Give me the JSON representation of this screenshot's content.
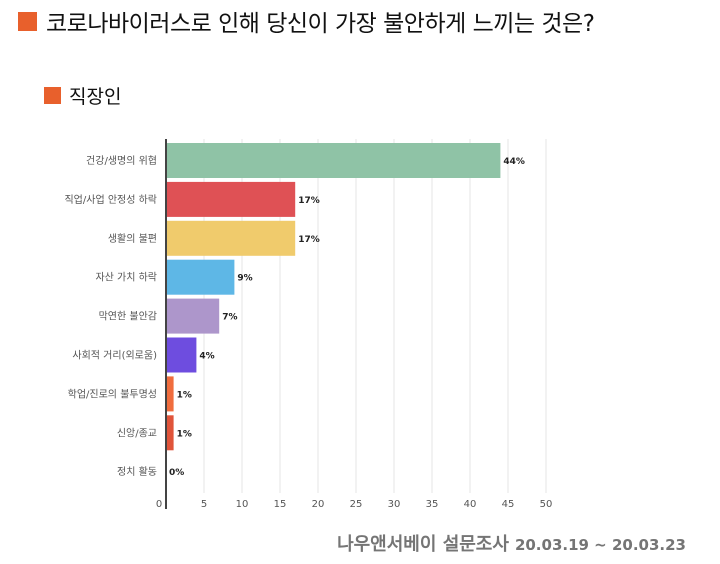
{
  "page": {
    "title": "코로나바이러스로 인해 당신이 가장 불안하게 느끼는 것은?",
    "subtitle": "직장인",
    "footer_brand": "나우앤서베이 설문조사",
    "footer_date": "20.03.19 ~ 20.03.23"
  },
  "chart_data": {
    "type": "bar",
    "orientation": "horizontal",
    "categories": [
      "건강/생명의 위협",
      "직업/사업 안정성 하락",
      "생활의 불편",
      "자산 가치 하락",
      "막연한 불안감",
      "사회적 거리(외로움)",
      "학업/진로의 불투명성",
      "신앙/종교",
      "정치 활동"
    ],
    "values": [
      44,
      17,
      17,
      9,
      7,
      4,
      1,
      1,
      0
    ],
    "value_labels": [
      "44%",
      "17%",
      "17%",
      "9%",
      "7%",
      "4%",
      "1%",
      "1%",
      "0%"
    ],
    "colors": [
      "#8fc3a6",
      "#df5155",
      "#f0cb6c",
      "#5eb7e6",
      "#ad96cb",
      "#6e4ddf",
      "#f06d3e",
      "#e0543a",
      "#cccccc"
    ],
    "xlim": [
      0,
      50
    ],
    "xticks": [
      0,
      5,
      10,
      15,
      20,
      25,
      30,
      35,
      40,
      45,
      50
    ],
    "grid": true
  }
}
